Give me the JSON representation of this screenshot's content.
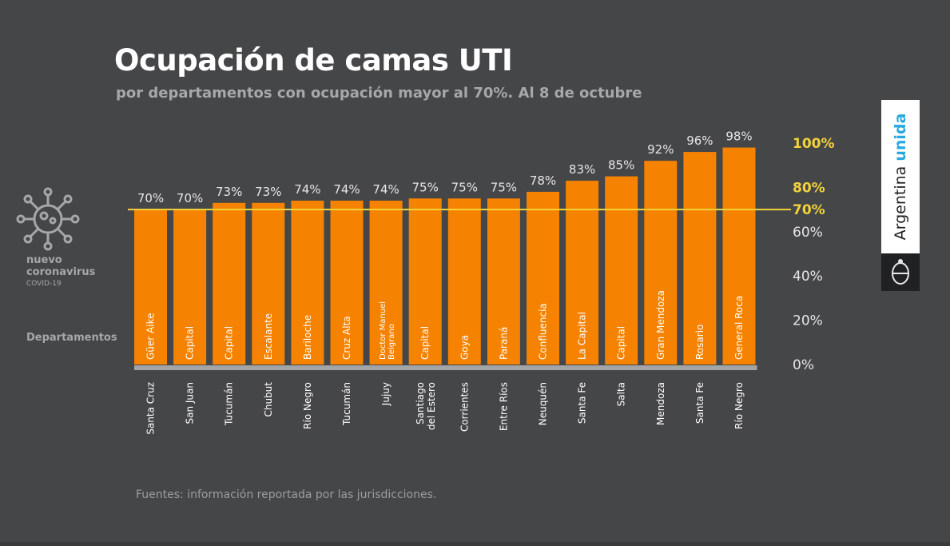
{
  "title": "Ocupación de camas UTI",
  "subtitle": "por departamentos con ocupación mayor al 70%. Al 8 de octubre",
  "virus_badge": {
    "icon": "coronavirus-icon",
    "line1": "nuevo",
    "line2": "coronavirus",
    "line3": "COVID-19"
  },
  "departments_label": "Departamentos",
  "source": "Fuentes: información reportada por las jurisdicciones.",
  "logo": {
    "text_main": "Argentina",
    "text_accent": "unida",
    "emblem": "coat-of-arms-icon"
  },
  "colors": {
    "background": "#454648",
    "bar": "#f58200",
    "threshold": "#f3d33a",
    "value_label": "#e6e6e6",
    "category_label": "#ffffff",
    "baseline": "#a3a4a6"
  },
  "chart_data": {
    "type": "bar",
    "title": "Ocupación de camas UTI",
    "subtitle": "por departamentos con ocupación mayor al 70%. Al 8 de octubre",
    "ylim": [
      0,
      100
    ],
    "yticks": [
      {
        "value": 0,
        "label": "0%"
      },
      {
        "value": 20,
        "label": "20%"
      },
      {
        "value": 40,
        "label": "40%"
      },
      {
        "value": 60,
        "label": "60%"
      },
      {
        "value": 70,
        "label": "70%",
        "highlight": true
      },
      {
        "value": 80,
        "label": "80%",
        "highlight": true
      },
      {
        "value": 100,
        "label": "100%",
        "highlight": true
      }
    ],
    "reference_line": {
      "value": 70
    },
    "departments": [
      "Güer Aike",
      "Capital",
      "Capital",
      "Escalante",
      "Bariloche",
      "Cruz Alta",
      "Doctor Manuel Belgrano",
      "Capital",
      "Goya",
      "Paraná",
      "Confluencia",
      "La Capital",
      "Capital",
      "Gran Mendoza",
      "Rosario",
      "General Roca"
    ],
    "provinces": [
      "Santa Cruz",
      "San Juan",
      "Tucumán",
      "Chubut",
      "Río Negro",
      "Tucumán",
      "Jujuy",
      "Santiago del Estero",
      "Corrientes",
      "Entre Ríos",
      "Neuquén",
      "Santa Fe",
      "Salta",
      "Mendoza",
      "Santa Fe",
      "Río Negro"
    ],
    "values": [
      70,
      70,
      73,
      73,
      74,
      74,
      74,
      75,
      75,
      75,
      78,
      83,
      85,
      92,
      96,
      98
    ],
    "value_labels": [
      "70%",
      "70%",
      "73%",
      "73%",
      "74%",
      "74%",
      "74%",
      "75%",
      "75%",
      "75%",
      "78%",
      "83%",
      "85%",
      "92%",
      "96%",
      "98%"
    ]
  }
}
